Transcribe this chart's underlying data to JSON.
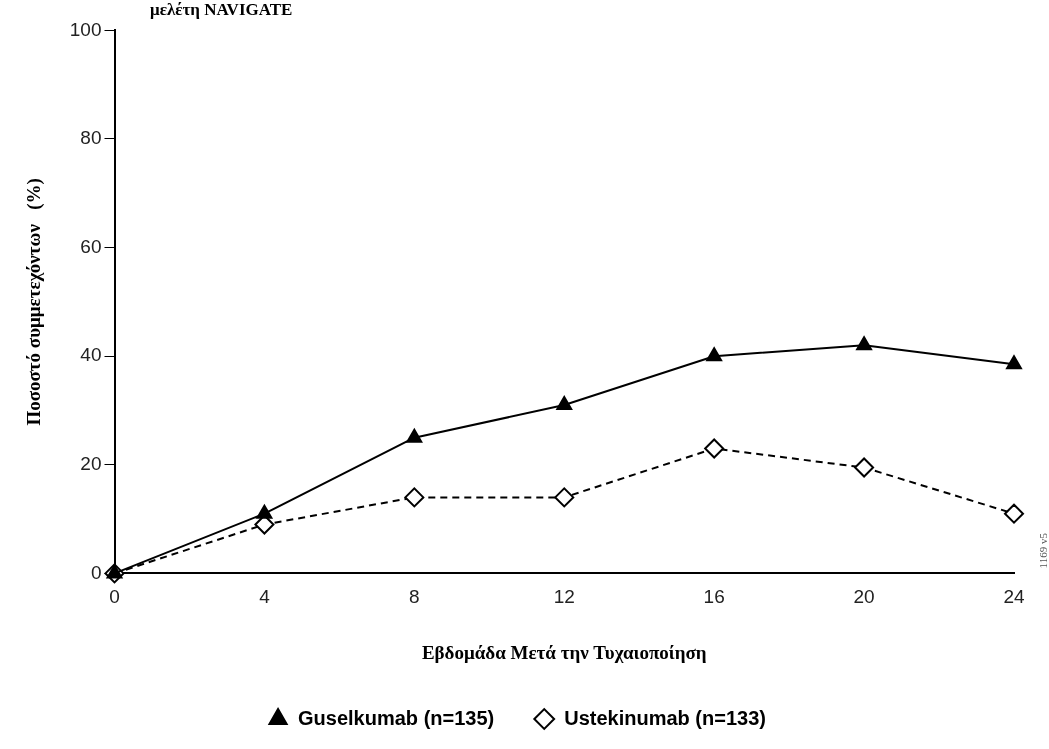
{
  "chart_data": {
    "type": "line",
    "title": "μελέτη NAVIGATE",
    "xlabel": "Εβδομάδα Μετά την Τυχαιοποίηση",
    "ylabel": "Ποσοστό συμμετεχόντων   (%)",
    "x": [
      0,
      4,
      8,
      12,
      16,
      20,
      24
    ],
    "series": [
      {
        "name": "Guselkumab (n=135)",
        "color": "#000000",
        "marker": "triangle",
        "line_style": "solid",
        "values": [
          0,
          11,
          25,
          31,
          40,
          42,
          38.5
        ]
      },
      {
        "name": "Ustekinumab (n=133)",
        "color": "#000000",
        "marker": "diamond",
        "line_style": "dashed",
        "values": [
          0,
          9,
          14,
          14,
          23,
          19.5,
          11
        ]
      }
    ],
    "xlim": [
      0,
      24
    ],
    "xticks": [
      0,
      4,
      8,
      12,
      16,
      20,
      24
    ],
    "ylim": [
      0,
      100
    ],
    "yticks": [
      0,
      20,
      40,
      60,
      80,
      100
    ],
    "grid": false,
    "legend": "bottom",
    "annotations": [
      "1169 v5"
    ]
  }
}
